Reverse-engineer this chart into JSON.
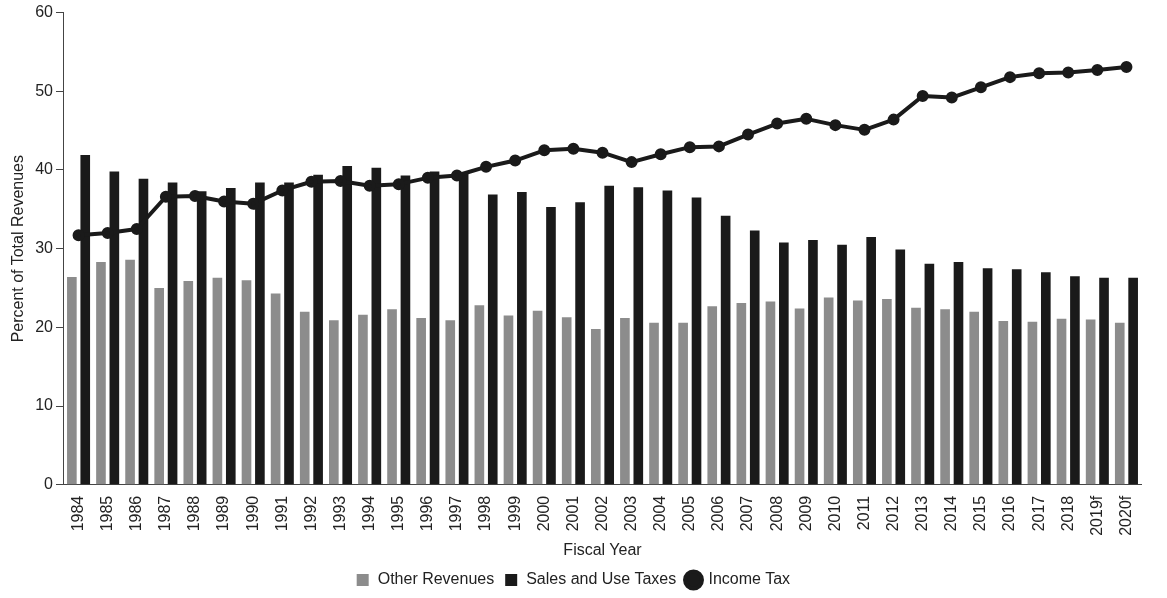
{
  "chart_data": {
    "type": "bar",
    "xlabel": "Fiscal Year",
    "ylabel": "Percent of Total Revenues",
    "categories": [
      "1984",
      "1985",
      "1986",
      "1987",
      "1988",
      "1989",
      "1990",
      "1991",
      "1992",
      "1993",
      "1994",
      "1995",
      "1996",
      "1997",
      "1998",
      "1999",
      "2000",
      "2001",
      "2002",
      "2003",
      "2004",
      "2005",
      "2006",
      "2007",
      "2008",
      "2009",
      "2010",
      "2011",
      "2012",
      "2013",
      "2014",
      "2015",
      "2016",
      "2017",
      "2018",
      "2019f",
      "2020f"
    ],
    "series": [
      {
        "name": "Other Revenues",
        "color": "#8c8c8c",
        "values": [
          26.4,
          28.3,
          28.6,
          25.0,
          25.9,
          26.3,
          26.0,
          24.3,
          22.0,
          20.9,
          21.6,
          22.3,
          21.2,
          20.9,
          22.8,
          21.5,
          22.1,
          21.3,
          19.8,
          21.2,
          20.6,
          20.6,
          22.7,
          23.1,
          23.3,
          22.4,
          23.8,
          23.4,
          23.6,
          22.5,
          22.3,
          22.0,
          20.8,
          20.7,
          21.1,
          21.0,
          20.6
        ]
      },
      {
        "name": "Sales and Use Taxes",
        "color": "#1a1a1a",
        "values": [
          41.9,
          39.8,
          38.9,
          38.4,
          37.3,
          37.7,
          38.4,
          38.4,
          39.4,
          40.5,
          40.3,
          39.3,
          39.8,
          39.5,
          36.9,
          37.2,
          35.3,
          35.9,
          38.0,
          37.8,
          37.4,
          36.5,
          34.2,
          32.3,
          30.8,
          31.1,
          30.5,
          31.5,
          29.9,
          28.1,
          28.3,
          27.5,
          27.4,
          27.0,
          26.5,
          26.3,
          26.3
        ]
      },
      {
        "name": "Income Tax",
        "type": "line",
        "color": "#1a1a1a",
        "values": [
          31.7,
          32.0,
          32.5,
          36.6,
          36.7,
          36.0,
          35.7,
          37.4,
          38.5,
          38.6,
          38.0,
          38.2,
          39.0,
          39.3,
          40.4,
          41.2,
          42.5,
          42.7,
          42.2,
          41.0,
          42.0,
          42.9,
          43.0,
          44.5,
          45.9,
          46.5,
          45.7,
          45.1,
          46.4,
          49.4,
          49.2,
          50.5,
          51.8,
          52.3,
          52.4,
          52.7,
          53.1
        ]
      }
    ],
    "ylim": [
      0,
      60
    ],
    "yticks": [
      0,
      10,
      20,
      30,
      40,
      50,
      60
    ],
    "grid": false,
    "legend": "bottom",
    "marker": "circle",
    "line_style": "solid"
  }
}
